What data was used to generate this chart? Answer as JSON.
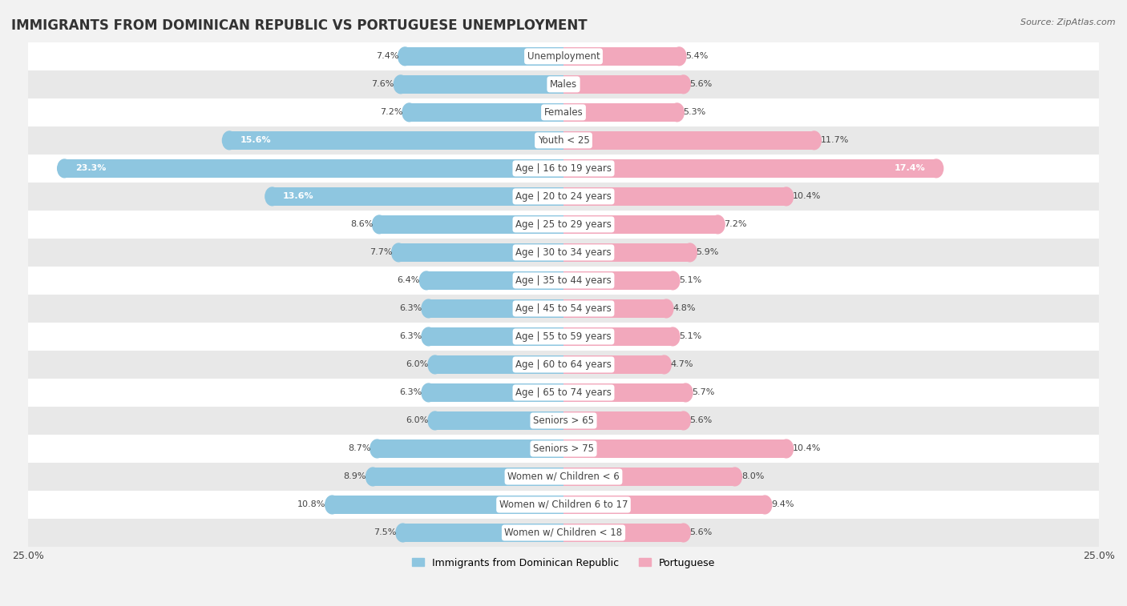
{
  "title": "IMMIGRANTS FROM DOMINICAN REPUBLIC VS PORTUGUESE UNEMPLOYMENT",
  "source": "Source: ZipAtlas.com",
  "categories": [
    "Unemployment",
    "Males",
    "Females",
    "Youth < 25",
    "Age | 16 to 19 years",
    "Age | 20 to 24 years",
    "Age | 25 to 29 years",
    "Age | 30 to 34 years",
    "Age | 35 to 44 years",
    "Age | 45 to 54 years",
    "Age | 55 to 59 years",
    "Age | 60 to 64 years",
    "Age | 65 to 74 years",
    "Seniors > 65",
    "Seniors > 75",
    "Women w/ Children < 6",
    "Women w/ Children 6 to 17",
    "Women w/ Children < 18"
  ],
  "left_values": [
    7.4,
    7.6,
    7.2,
    15.6,
    23.3,
    13.6,
    8.6,
    7.7,
    6.4,
    6.3,
    6.3,
    6.0,
    6.3,
    6.0,
    8.7,
    8.9,
    10.8,
    7.5
  ],
  "right_values": [
    5.4,
    5.6,
    5.3,
    11.7,
    17.4,
    10.4,
    7.2,
    5.9,
    5.1,
    4.8,
    5.1,
    4.7,
    5.7,
    5.6,
    10.4,
    8.0,
    9.4,
    5.6
  ],
  "left_color": "#8EC6E0",
  "right_color": "#F2A8BC",
  "left_label": "Immigrants from Dominican Republic",
  "right_label": "Portuguese",
  "xlim": 25.0,
  "background_color": "#f2f2f2",
  "row_colors_odd": "#ffffff",
  "row_colors_even": "#e8e8e8",
  "bar_height": 0.65,
  "title_fontsize": 12,
  "label_fontsize": 8.5,
  "value_fontsize": 8,
  "inside_threshold": 12.0
}
